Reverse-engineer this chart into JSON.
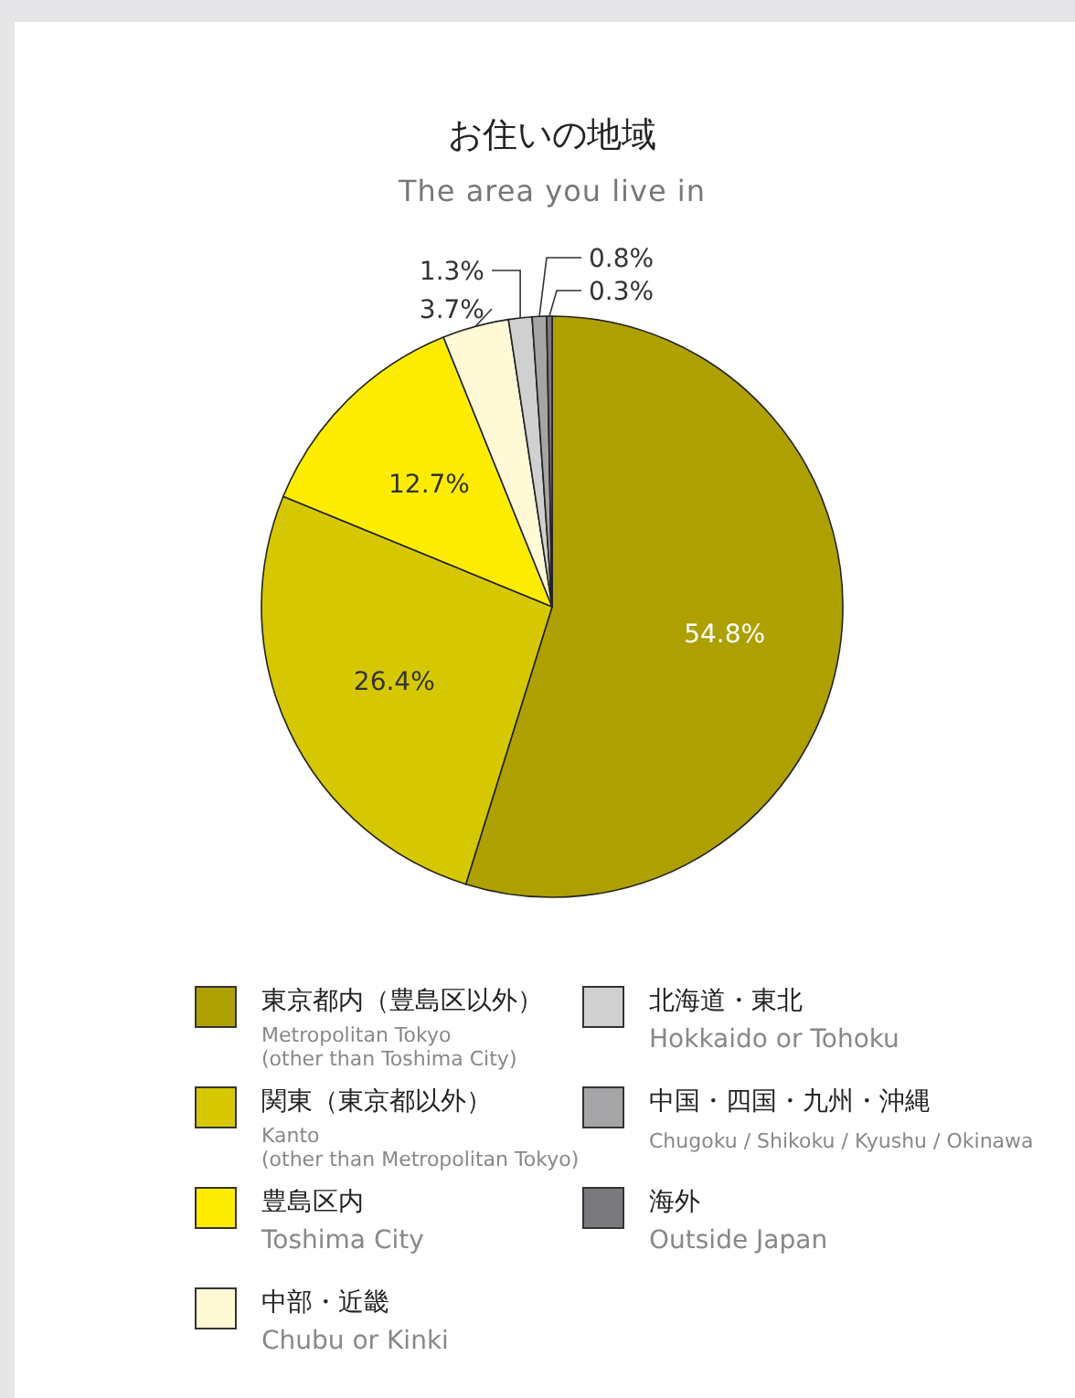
{
  "chart_data": {
    "type": "pie",
    "title": "お住いの地域",
    "subtitle": "The area you live in",
    "categories": [
      "東京都内（豊島区以外）\nMetropolitan Tokyo\n(other than Toshima City)",
      "関東（東京都以外）\nKanto\n(other than Metropolitan Tokyo)",
      "豊島区内\nToshima City",
      "中部・近畿\nChubu or Kinki",
      "北海道・東北\nHokkaido or Tohoku",
      "中国・四国・九州・沖縄\nChugoku / Shikoku / Kyushu / Okinawa",
      "海外\nOutside Japan"
    ],
    "values": [
      54.8,
      26.4,
      12.7,
      3.7,
      1.3,
      0.8,
      0.3
    ],
    "value_labels": [
      "54.8%",
      "26.4%",
      "12.7%",
      "3.7%",
      "1.3%",
      "0.8%",
      "0.3%"
    ],
    "colors": [
      "#ada000",
      "#d6c800",
      "#ffed00",
      "#fff9d6",
      "#d0d0d0",
      "#a5a5a8",
      "#7a7a7e"
    ],
    "legend": "bottom"
  }
}
